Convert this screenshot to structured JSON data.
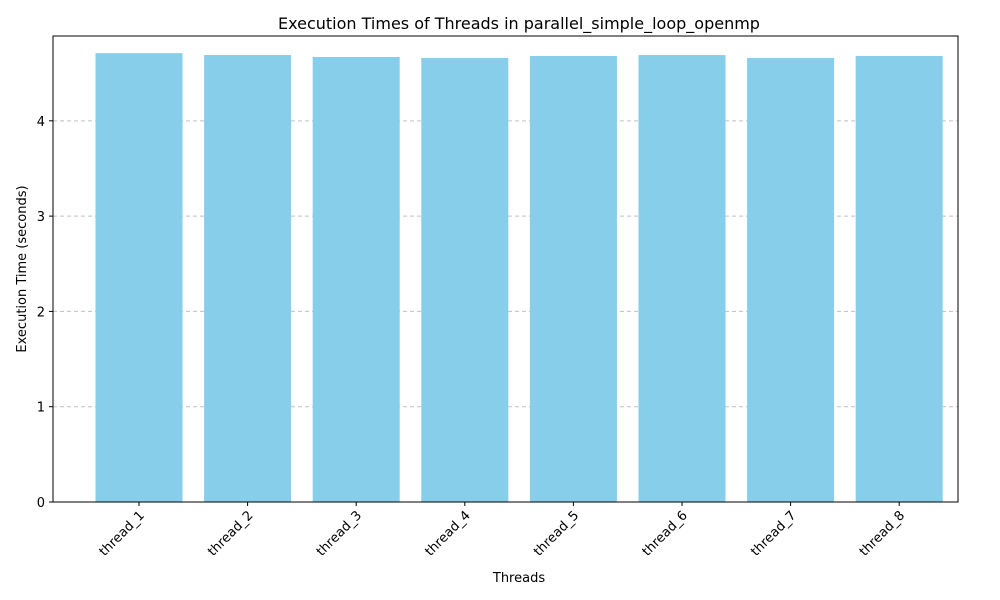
{
  "chart_data": {
    "type": "bar",
    "title": "Execution Times of Threads in parallel_simple_loop_openmp",
    "xlabel": "Threads",
    "ylabel": "Execution Time (seconds)",
    "categories": [
      "thread_1",
      "thread_2",
      "thread_3",
      "thread_4",
      "thread_5",
      "thread_6",
      "thread_7",
      "thread_8"
    ],
    "values": [
      4.71,
      4.69,
      4.67,
      4.66,
      4.68,
      4.69,
      4.66,
      4.68
    ],
    "ylim": [
      0,
      4.89
    ],
    "yticks": [
      0,
      1,
      2,
      3,
      4
    ],
    "ytick_labels": [
      "0",
      "1",
      "2",
      "3",
      "4"
    ],
    "grid": "y-dashed",
    "bar_color": "#87ceeb",
    "grid_color": "#c0c0c0"
  }
}
